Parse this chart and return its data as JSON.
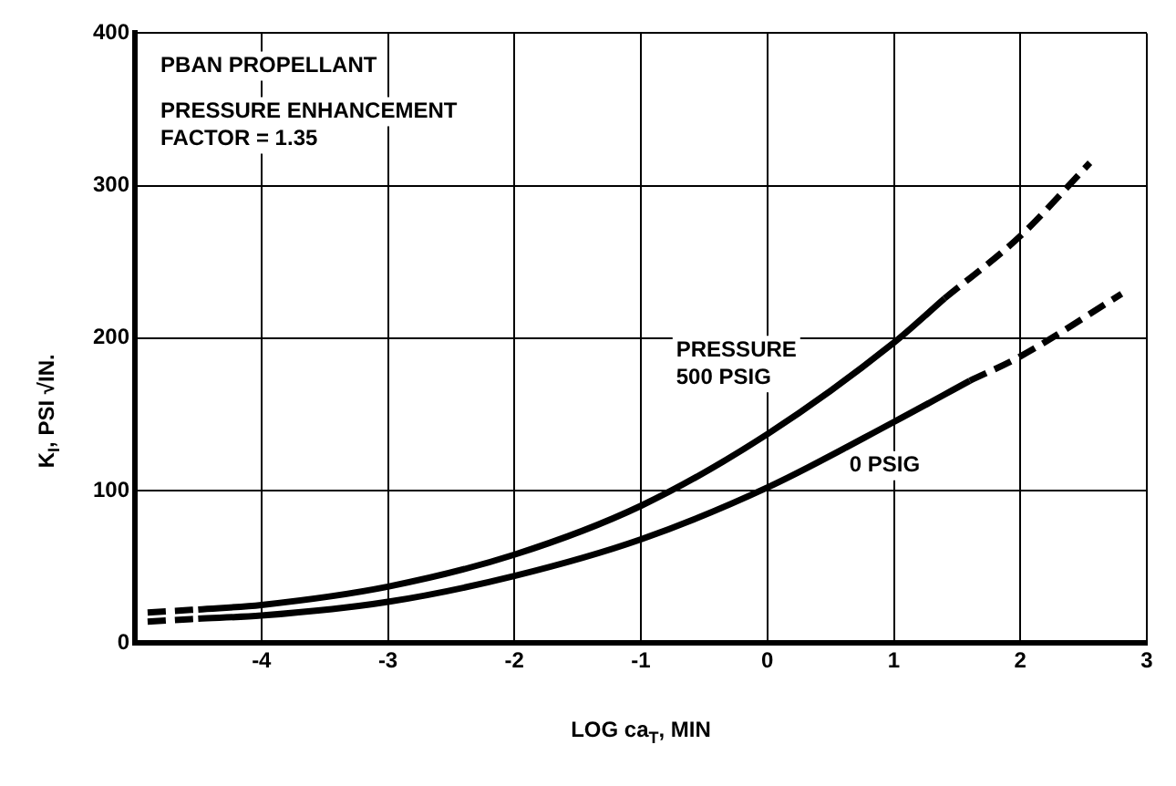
{
  "chart_data": {
    "type": "line",
    "xlabel": "LOG ca$_{T}$, MIN",
    "ylabel": "K$_{I}$, PSI √IN.",
    "annotations": [
      "PBAN PROPELLANT",
      "PRESSURE ENHANCEMENT\nFACTOR = 1.35"
    ],
    "xlim": [
      -5,
      3
    ],
    "xticks": [
      {
        "value": -5,
        "label": null
      },
      -4,
      -3,
      -2,
      -1,
      0,
      1,
      2,
      3
    ],
    "ylim": [
      0,
      400
    ],
    "yticks": [
      0,
      100,
      200,
      300,
      400
    ],
    "grid": true,
    "legend": false,
    "marker": "none",
    "series": [
      {
        "name": "PRESSURE\n500 PSIG",
        "color": "#000000",
        "line_style": "solid",
        "x": [
          -4.5,
          -4,
          -3,
          -2,
          -1,
          0,
          1,
          1.4
        ],
        "values": [
          22,
          25,
          37,
          58,
          90,
          137,
          197,
          226
        ]
      },
      {
        "color": "#000000",
        "line_style": "dashed",
        "x": [
          -4.9,
          -4.5
        ],
        "values": [
          20,
          22
        ]
      },
      {
        "color": "#000000",
        "line_style": "dashed",
        "x": [
          1.4,
          2,
          2.55
        ],
        "values": [
          226,
          267,
          315
        ]
      },
      {
        "name": "0 PSIG",
        "color": "#000000",
        "line_style": "solid",
        "x": [
          -4.5,
          -4,
          -3,
          -2,
          -1,
          0,
          1,
          1.6
        ],
        "values": [
          16,
          18,
          27,
          44,
          68,
          102,
          145,
          172
        ]
      },
      {
        "color": "#000000",
        "line_style": "dashed",
        "x": [
          -4.9,
          -4.5
        ],
        "values": [
          14,
          16
        ]
      },
      {
        "color": "#000000",
        "line_style": "dashed",
        "x": [
          1.6,
          2,
          2.8
        ],
        "values": [
          172,
          188,
          229
        ]
      }
    ]
  }
}
